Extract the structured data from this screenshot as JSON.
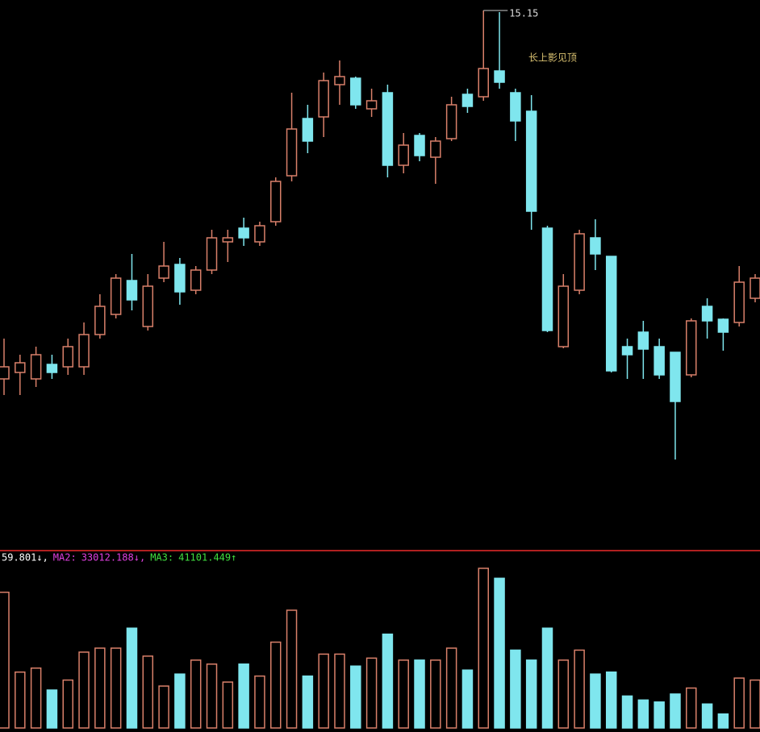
{
  "chart_data": {
    "type": "candlestick",
    "annotation": "长上影见顶",
    "up_color": "#d9806a",
    "down_color": "#7fe6ee",
    "open": [
      10.58,
      10.66,
      10.58,
      10.76,
      10.73,
      10.73,
      11.13,
      11.38,
      11.8,
      11.23,
      11.83,
      12.0,
      11.68,
      11.93,
      12.28,
      12.45,
      12.28,
      12.53,
      13.1,
      13.81,
      13.83,
      14.23,
      14.31,
      13.93,
      14.13,
      13.23,
      13.6,
      13.33,
      13.56,
      14.11,
      14.08,
      14.4,
      14.13,
      13.9,
      12.45,
      10.98,
      11.68,
      12.33,
      12.1,
      10.98,
      11.16,
      10.98,
      10.91,
      10.63,
      11.48,
      11.32,
      11.28,
      11.58
    ],
    "high": [
      11.08,
      10.88,
      10.98,
      10.88,
      11.08,
      11.28,
      11.63,
      11.88,
      12.13,
      11.88,
      12.28,
      12.08,
      11.98,
      12.43,
      12.43,
      12.58,
      12.53,
      13.08,
      14.13,
      13.98,
      14.38,
      14.53,
      14.33,
      14.18,
      14.23,
      13.63,
      13.63,
      13.58,
      14.08,
      14.18,
      15.15,
      15.13,
      14.18,
      14.1,
      12.48,
      11.88,
      12.43,
      12.56,
      12.1,
      11.08,
      11.3,
      11.08,
      10.91,
      11.33,
      11.58,
      11.33,
      11.98,
      11.88
    ],
    "low": [
      10.38,
      10.38,
      10.48,
      10.58,
      10.63,
      10.63,
      11.08,
      11.33,
      11.43,
      11.18,
      11.78,
      11.5,
      11.63,
      11.88,
      12.03,
      12.23,
      12.23,
      12.48,
      13.03,
      13.38,
      13.58,
      13.98,
      13.93,
      13.83,
      13.08,
      13.13,
      13.28,
      13.0,
      13.53,
      13.88,
      14.03,
      14.18,
      13.53,
      12.43,
      11.16,
      10.96,
      11.63,
      11.93,
      10.66,
      10.58,
      10.58,
      10.58,
      9.58,
      10.6,
      11.08,
      10.93,
      11.23,
      11.53
    ],
    "close": [
      10.73,
      10.78,
      10.88,
      10.66,
      10.98,
      11.13,
      11.48,
      11.83,
      11.56,
      11.73,
      11.98,
      11.66,
      11.93,
      12.33,
      12.33,
      12.33,
      12.48,
      13.03,
      13.68,
      13.53,
      14.28,
      14.33,
      13.98,
      14.03,
      13.23,
      13.48,
      13.35,
      13.53,
      13.98,
      13.96,
      14.43,
      14.26,
      13.78,
      12.66,
      11.18,
      11.73,
      12.38,
      12.13,
      10.68,
      10.88,
      10.95,
      10.63,
      10.3,
      11.3,
      11.3,
      11.16,
      11.78,
      11.83
    ],
    "ylim": [
      8.58,
      15.2
    ],
    "volume": {
      "values": [
        68000,
        28000,
        30000,
        19000,
        24000,
        38000,
        40000,
        40000,
        50000,
        36000,
        21000,
        27000,
        34000,
        32000,
        23000,
        32000,
        26000,
        43000,
        59000,
        26000,
        37000,
        37000,
        31000,
        35000,
        47000,
        34000,
        34000,
        34000,
        40000,
        29000,
        80000,
        75000,
        39000,
        34000,
        50000,
        34000,
        39000,
        27000,
        28000,
        16000,
        14000,
        13000,
        17000,
        20000,
        12000,
        7000,
        25000,
        24000
      ],
      "ylim": [
        0,
        82000
      ]
    },
    "volume_header": [
      "59.801↓,",
      "MA2:",
      "33012.188↓,",
      "MA3:",
      "41101.449↑"
    ]
  }
}
